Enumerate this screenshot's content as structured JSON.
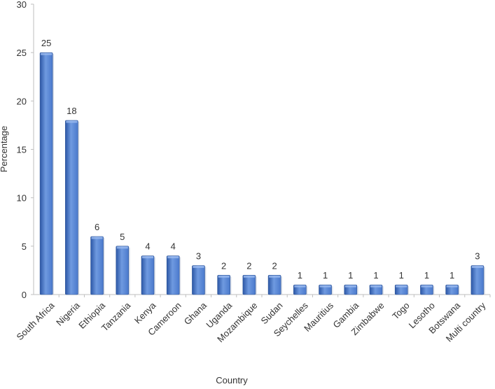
{
  "chart_data": {
    "type": "bar",
    "title": "",
    "xlabel": "Country",
    "ylabel": "Percentage",
    "ylim": [
      0,
      30
    ],
    "yticks": [
      0,
      5,
      10,
      15,
      20,
      25,
      30
    ],
    "categories": [
      "South Africa",
      "Nigeria",
      "Ethiopia",
      "Tanzania",
      "Kenya",
      "Cameroon",
      "Ghana",
      "Uganda",
      "Mozambique",
      "Sudan",
      "Seychelles",
      "Mauritius",
      "Gambia",
      "Zimbabwe",
      "Togo",
      "Lesotho",
      "Botswana",
      "Multi country"
    ],
    "values": [
      25,
      18,
      6,
      5,
      4,
      4,
      3,
      2,
      2,
      2,
      1,
      1,
      1,
      1,
      1,
      1,
      1,
      3
    ],
    "data_labels": true,
    "grid": false,
    "legend": "none",
    "colors": {
      "bar_light": "#6f9ae0",
      "bar_mid": "#4a79cc",
      "bar_dark": "#2c57a6",
      "axis": "#bfbfbf",
      "text": "#333333"
    }
  }
}
